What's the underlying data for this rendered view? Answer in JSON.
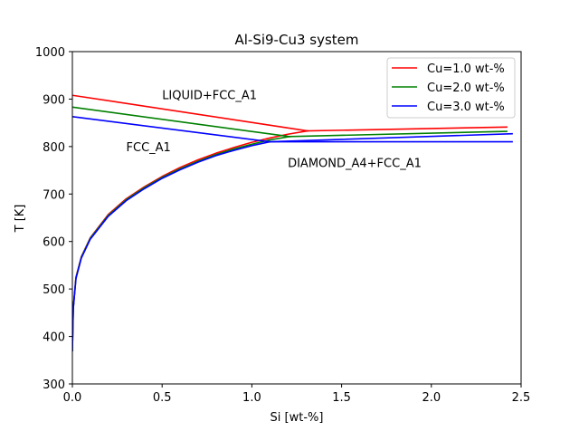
{
  "chart_data": {
    "type": "line",
    "title": "Al-Si9-Cu3 system",
    "xlabel": "Si [wt-%]",
    "ylabel": "T [K]",
    "xlim": [
      0,
      2.5
    ],
    "ylim": [
      300,
      1000
    ],
    "xticks": [
      0.0,
      0.5,
      1.0,
      1.5,
      2.0,
      2.5
    ],
    "xtick_labels": [
      "0.0",
      "0.5",
      "1.0",
      "1.5",
      "2.0",
      "2.5"
    ],
    "yticks": [
      300,
      400,
      500,
      600,
      700,
      800,
      900,
      1000
    ],
    "ytick_labels": [
      "300",
      "400",
      "500",
      "600",
      "700",
      "800",
      "900",
      "1000"
    ],
    "grid": false,
    "legend_position": "top-right",
    "annotations": [
      {
        "text": "LIQUID+FCC_A1",
        "x": 0.5,
        "y": 900
      },
      {
        "text": "FCC_A1",
        "x": 0.3,
        "y": 790
      },
      {
        "text": "DIAMOND_A4+FCC_A1",
        "x": 1.2,
        "y": 757
      }
    ],
    "series": [
      {
        "name": "Cu=1.0 wt-%",
        "color": "#ff0000",
        "segments": [
          {
            "x": [
              0,
              1.31
            ],
            "y": [
              908,
              833
            ]
          },
          {
            "x": [
              1.31,
              2.42
            ],
            "y": [
              833,
              841
            ]
          },
          {
            "x": [
              0.0,
              0.005,
              0.02,
              0.05,
              0.1,
              0.2,
              0.3,
              0.4,
              0.5,
              0.6,
              0.7,
              0.8,
              0.9,
              1.0,
              1.1,
              1.2,
              1.31
            ],
            "y": [
              370,
              460,
              525,
              568,
              608,
              657,
              690,
              715,
              737,
              756,
              772,
              786,
              798,
              809,
              818,
              826,
              833
            ]
          }
        ]
      },
      {
        "name": "Cu=2.0 wt-%",
        "color": "#008000",
        "segments": [
          {
            "x": [
              0,
              1.21
            ],
            "y": [
              883,
              821
            ]
          },
          {
            "x": [
              1.21,
              2.42
            ],
            "y": [
              821,
              832
            ]
          },
          {
            "x": [
              0.0,
              0.005,
              0.02,
              0.05,
              0.1,
              0.2,
              0.3,
              0.4,
              0.5,
              0.6,
              0.7,
              0.8,
              0.9,
              1.0,
              1.1,
              1.21
            ],
            "y": [
              370,
              460,
              524,
              567,
              607,
              655,
              688,
              713,
              735,
              753,
              769,
              783,
              795,
              805,
              814,
              821
            ]
          }
        ]
      },
      {
        "name": "Cu=3.0 wt-%",
        "color": "#0000ff",
        "segments": [
          {
            "x": [
              0,
              1.1
            ],
            "y": [
              863,
              810
            ]
          },
          {
            "x": [
              1.1,
              2.45
            ],
            "y": [
              810,
              810
            ]
          },
          {
            "x": [
              1.1,
              2.45
            ],
            "y": [
              810,
              827
            ]
          },
          {
            "x": [
              0.0,
              0.005,
              0.02,
              0.05,
              0.1,
              0.2,
              0.3,
              0.4,
              0.5,
              0.6,
              0.7,
              0.8,
              0.9,
              1.0,
              1.1
            ],
            "y": [
              370,
              458,
              522,
              565,
              605,
              653,
              686,
              711,
              733,
              751,
              767,
              781,
              792,
              802,
              810
            ]
          }
        ]
      }
    ]
  }
}
